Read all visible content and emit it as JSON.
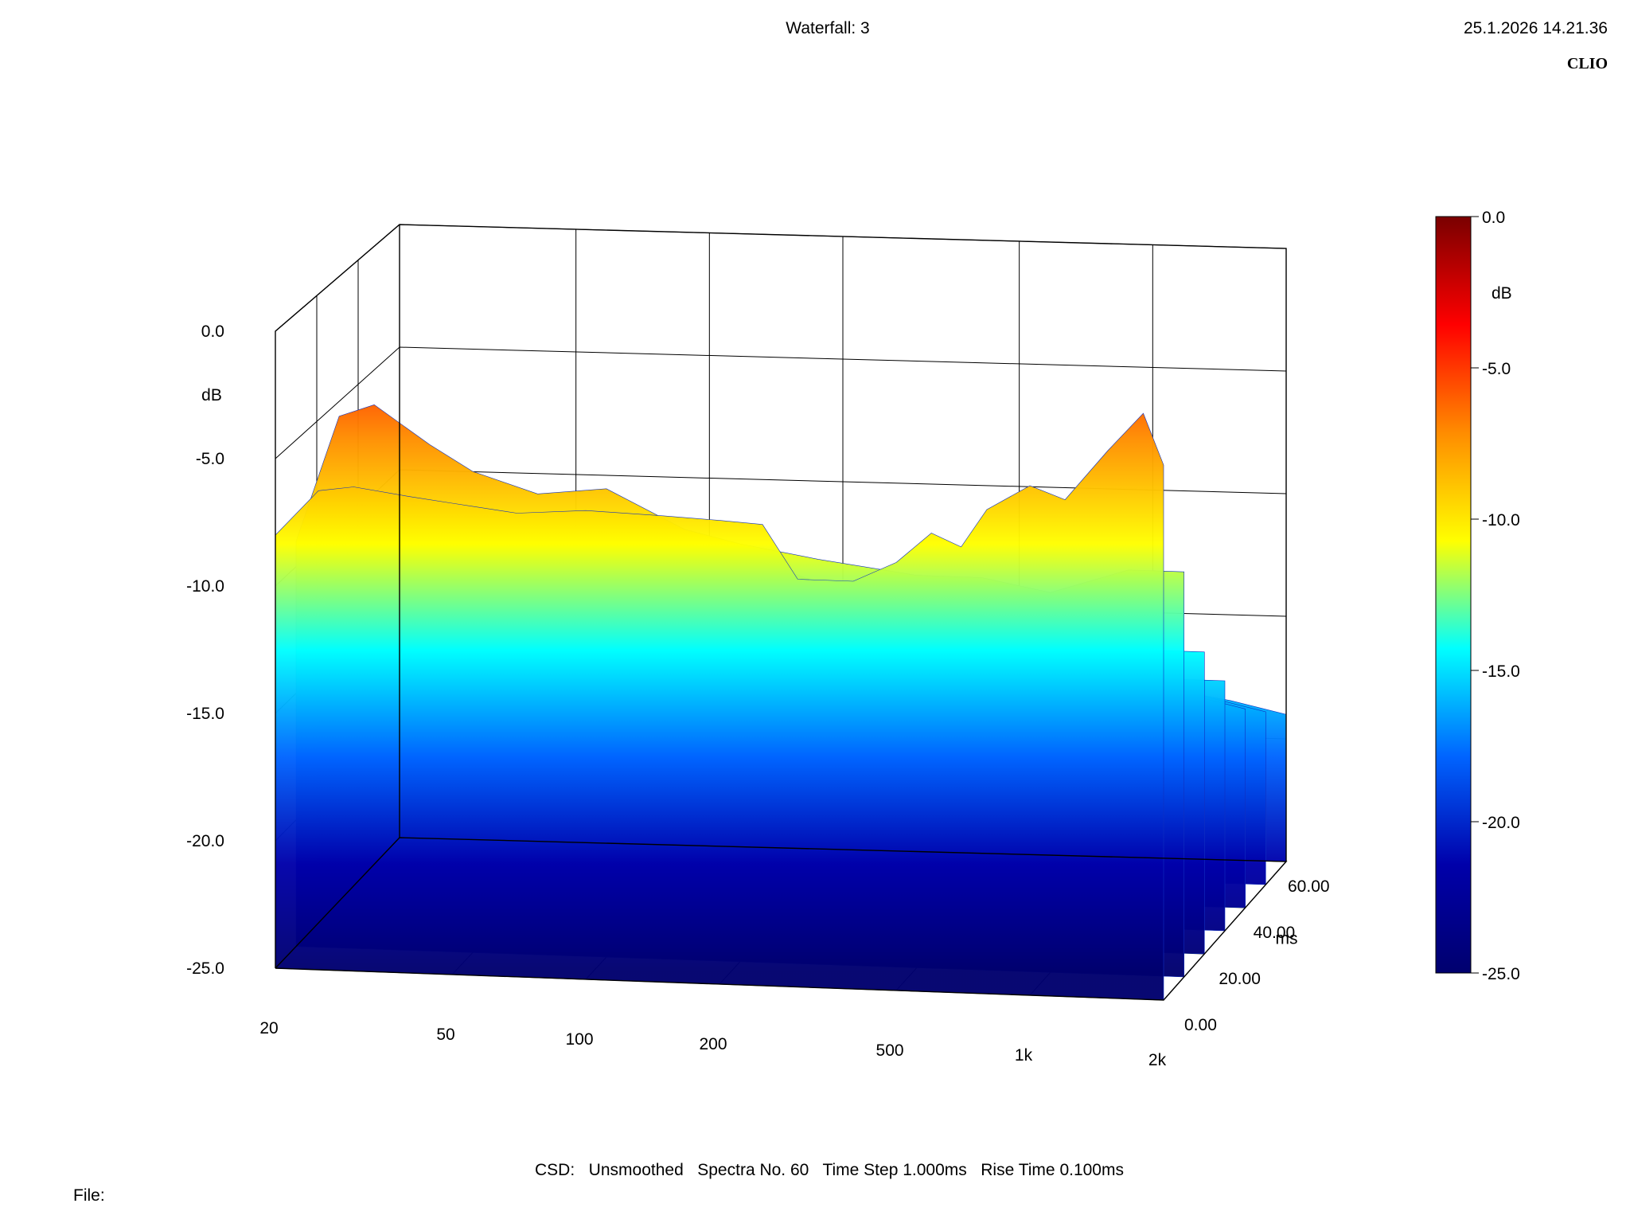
{
  "header": {
    "title": "Waterfall: 3",
    "timestamp": "25.1.2026 14.21.36",
    "brand": "CLIO"
  },
  "footer": {
    "info": "CSD:   Unsmoothed   Spectra No. 60   Time Step 1.000ms   Rise Time 0.100ms",
    "file_label": "File:"
  },
  "chart_data": {
    "type": "waterfall",
    "title": "Waterfall: 3",
    "x_axis": {
      "label": "",
      "scale": "log",
      "range": [
        20,
        2000
      ],
      "ticks": [
        {
          "value": 20,
          "label": "20"
        },
        {
          "value": 50,
          "label": "50"
        },
        {
          "value": 100,
          "label": "100"
        },
        {
          "value": 200,
          "label": "200"
        },
        {
          "value": 500,
          "label": "500"
        },
        {
          "value": 1000,
          "label": "1k"
        },
        {
          "value": 2000,
          "label": "2k"
        }
      ]
    },
    "y_axis": {
      "label": "dB",
      "range": [
        -25,
        0
      ],
      "ticks": [
        {
          "value": 0,
          "label": "0.0"
        },
        {
          "value": -5,
          "label": "-5.0"
        },
        {
          "value": -10,
          "label": "-10.0"
        },
        {
          "value": -15,
          "label": "-15.0"
        },
        {
          "value": -20,
          "label": "-20.0"
        },
        {
          "value": -25,
          "label": "-25.0"
        }
      ]
    },
    "z_axis": {
      "label": "ms",
      "range": [
        0,
        60
      ],
      "ticks": [
        {
          "value": 0,
          "label": "0.00"
        },
        {
          "value": 20,
          "label": "20.00"
        },
        {
          "value": 40,
          "label": "40.00"
        },
        {
          "value": 60,
          "label": "60.00"
        }
      ]
    },
    "colorbar": {
      "label": "dB",
      "range": [
        -25,
        0
      ],
      "ticks": [
        {
          "value": 0,
          "label": "0.0"
        },
        {
          "value": -5,
          "label": "-5.0"
        },
        {
          "value": -10,
          "label": "-10.0"
        },
        {
          "value": -15,
          "label": "-15.0"
        },
        {
          "value": -20,
          "label": "-20.0"
        },
        {
          "value": -25,
          "label": "-25.0"
        }
      ],
      "colors": [
        "#7a0000",
        "#ff0000",
        "#ff8c00",
        "#ffff00",
        "#00ffff",
        "#0064ff",
        "#0000aa",
        "#00006e"
      ]
    },
    "spectra_count": 60,
    "time_step_ms": 1.0,
    "rise_time_ms": 0.1,
    "smoothing": "Unsmoothed",
    "series": [
      {
        "time_ms": 0,
        "points": [
          [
            20,
            -8
          ],
          [
            25,
            -6.2
          ],
          [
            30,
            -6
          ],
          [
            40,
            -6.3
          ],
          [
            50,
            -6.5
          ],
          [
            70,
            -6.8
          ],
          [
            100,
            -6.6
          ],
          [
            150,
            -6.7
          ],
          [
            200,
            -6.8
          ],
          [
            250,
            -6.9
          ],
          [
            300,
            -9
          ],
          [
            400,
            -9
          ],
          [
            500,
            -8.2
          ],
          [
            600,
            -7
          ],
          [
            700,
            -7.5
          ],
          [
            800,
            -6
          ],
          [
            1000,
            -5
          ],
          [
            1200,
            -5.5
          ],
          [
            1500,
            -3.5
          ],
          [
            1800,
            -2
          ],
          [
            2000,
            -4
          ]
        ]
      },
      {
        "time_ms": 10,
        "points": [
          [
            20,
            -9
          ],
          [
            25,
            -4
          ],
          [
            30,
            -3.5
          ],
          [
            40,
            -5
          ],
          [
            50,
            -6
          ],
          [
            70,
            -6.8
          ],
          [
            100,
            -6.5
          ],
          [
            150,
            -8
          ],
          [
            200,
            -8.5
          ],
          [
            300,
            -9
          ],
          [
            500,
            -9.5
          ],
          [
            700,
            -9.5
          ],
          [
            1000,
            -10
          ],
          [
            1500,
            -9
          ],
          [
            2000,
            -9
          ]
        ]
      },
      {
        "time_ms": 20,
        "points": [
          [
            20,
            -13
          ],
          [
            25,
            -9
          ],
          [
            30,
            -8
          ],
          [
            40,
            -8.5
          ],
          [
            50,
            -8.5
          ],
          [
            70,
            -9
          ],
          [
            100,
            -9
          ],
          [
            150,
            -9.5
          ],
          [
            200,
            -10
          ],
          [
            300,
            -11
          ],
          [
            500,
            -11.5
          ],
          [
            700,
            -12
          ],
          [
            1000,
            -12.5
          ],
          [
            1500,
            -13
          ],
          [
            2000,
            -13
          ]
        ]
      },
      {
        "time_ms": 30,
        "points": [
          [
            20,
            -14
          ],
          [
            25,
            -11
          ],
          [
            30,
            -10
          ],
          [
            40,
            -10
          ],
          [
            50,
            -10.5
          ],
          [
            70,
            -11
          ],
          [
            100,
            -11
          ],
          [
            150,
            -11.5
          ],
          [
            200,
            -12
          ],
          [
            300,
            -13
          ],
          [
            500,
            -13.5
          ],
          [
            700,
            -14
          ],
          [
            1000,
            -14.5
          ],
          [
            1500,
            -15
          ],
          [
            2000,
            -15
          ]
        ]
      },
      {
        "time_ms": 40,
        "points": [
          [
            20,
            -15
          ],
          [
            25,
            -13
          ],
          [
            30,
            -12
          ],
          [
            40,
            -12
          ],
          [
            50,
            -12.5
          ],
          [
            70,
            -12.5
          ],
          [
            100,
            -13
          ],
          [
            150,
            -13
          ],
          [
            200,
            -13.5
          ],
          [
            300,
            -14
          ],
          [
            500,
            -15
          ],
          [
            700,
            -15.5
          ],
          [
            1000,
            -16
          ],
          [
            1500,
            -16.5
          ],
          [
            2000,
            -17
          ]
        ]
      },
      {
        "time_ms": 50,
        "points": [
          [
            20,
            -16.5
          ],
          [
            25,
            -14.5
          ],
          [
            30,
            -13.5
          ],
          [
            40,
            -13.5
          ],
          [
            50,
            -14
          ],
          [
            70,
            -14
          ],
          [
            100,
            -14
          ],
          [
            150,
            -14.5
          ],
          [
            200,
            -15
          ],
          [
            300,
            -15.5
          ],
          [
            500,
            -16
          ],
          [
            700,
            -16.5
          ],
          [
            1000,
            -17
          ],
          [
            1500,
            -17.5
          ],
          [
            2000,
            -18
          ]
        ]
      },
      {
        "time_ms": 60,
        "points": [
          [
            20,
            -18
          ],
          [
            25,
            -16
          ],
          [
            30,
            -15
          ],
          [
            40,
            -15
          ],
          [
            50,
            -15
          ],
          [
            70,
            -15.5
          ],
          [
            100,
            -15.5
          ],
          [
            150,
            -16
          ],
          [
            200,
            -16
          ],
          [
            300,
            -16.5
          ],
          [
            500,
            -17
          ],
          [
            700,
            -17.5
          ],
          [
            1000,
            -18
          ],
          [
            1500,
            -18.5
          ],
          [
            2000,
            -19
          ]
        ]
      }
    ]
  }
}
